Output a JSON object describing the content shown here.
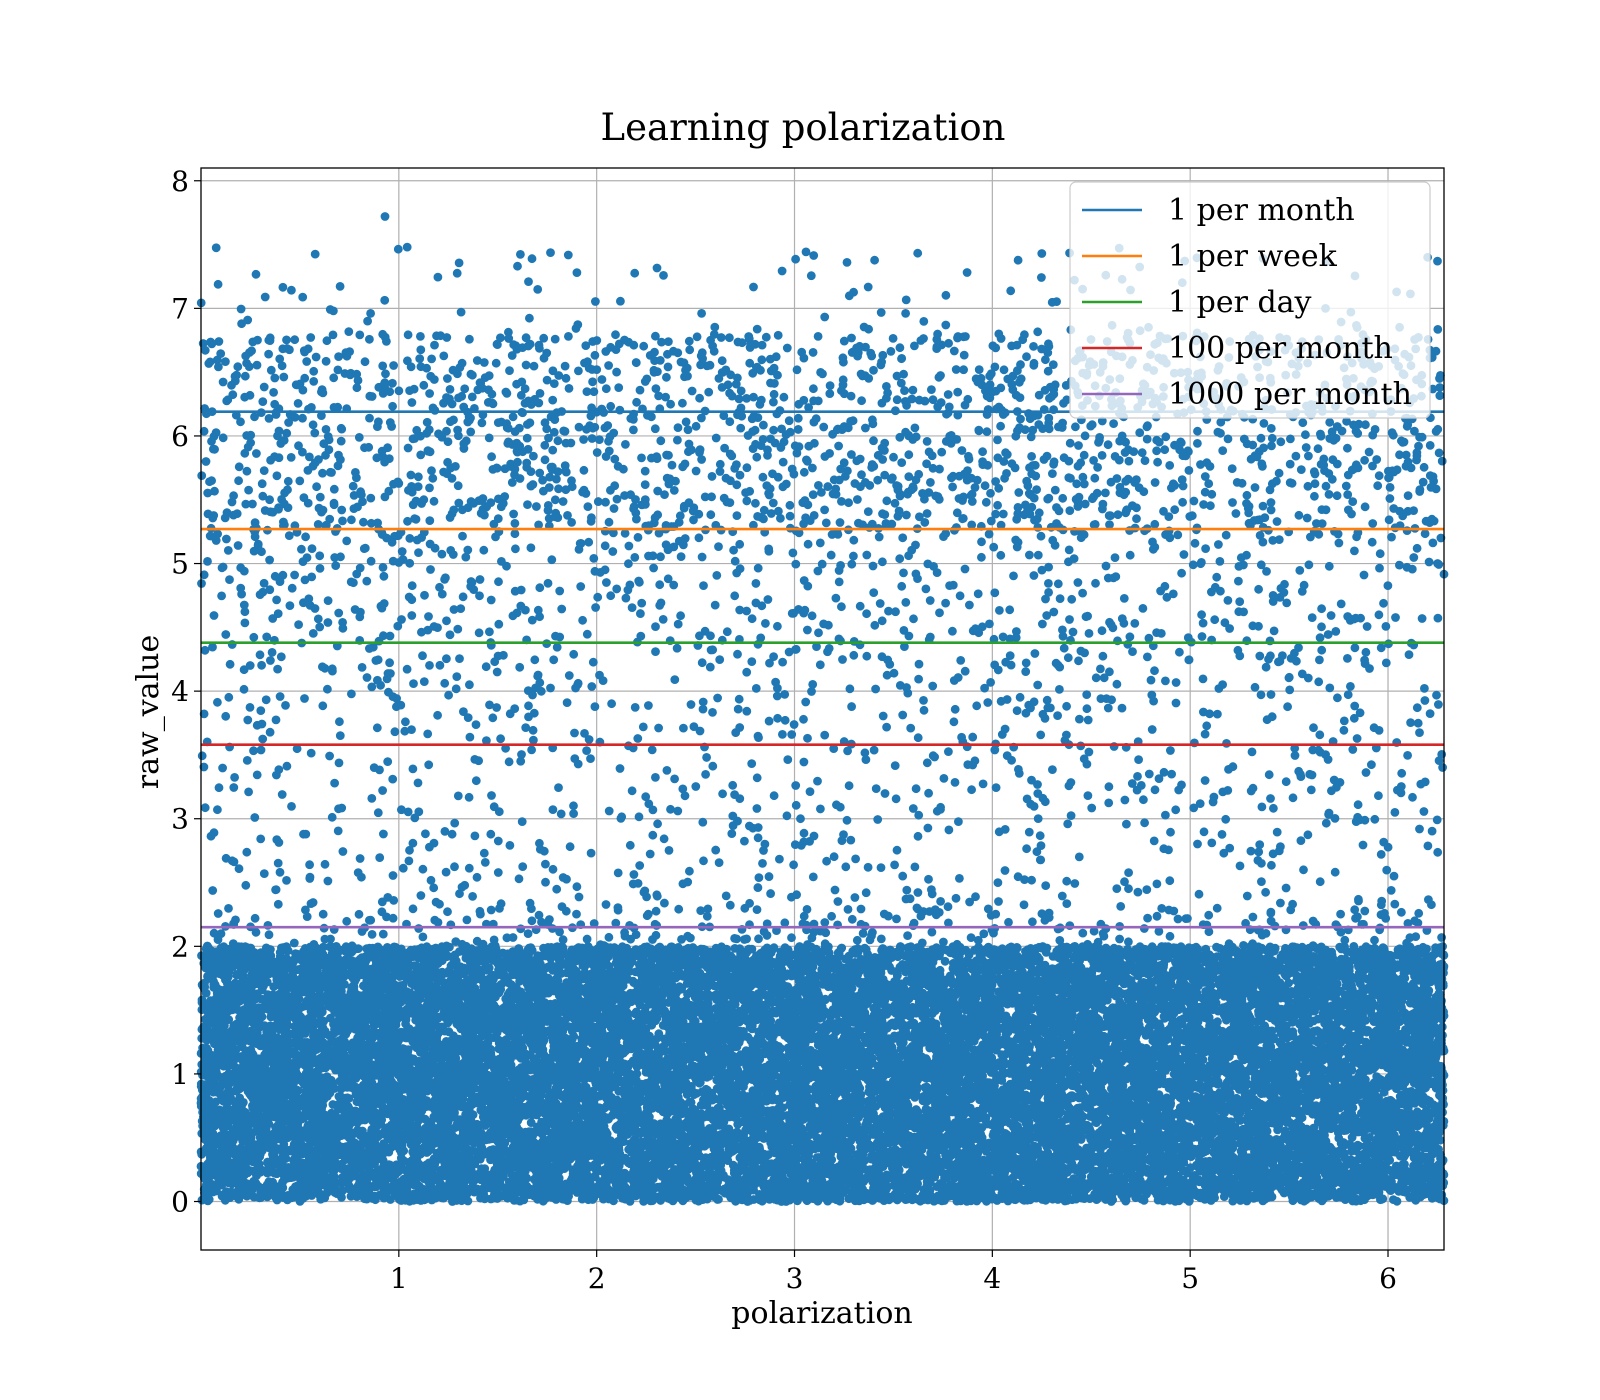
{
  "chart_data": {
    "type": "scatter",
    "title": "Learning polarization",
    "xlabel": "polarization",
    "ylabel": "raw_value",
    "xlim": [
      0.0,
      6.283
    ],
    "ylim": [
      -0.38,
      8.1
    ],
    "xticks": [
      1,
      2,
      3,
      4,
      5,
      6
    ],
    "yticks": [
      0,
      1,
      2,
      3,
      4,
      5,
      6,
      7,
      8
    ],
    "grid": true,
    "legend_position": "top-right",
    "scatter": {
      "color": "#1f77b4",
      "dense_band": {
        "y_range": [
          0.0,
          2.0
        ],
        "approx_points": 20000
      },
      "sparse_region": {
        "y_range": [
          2.0,
          7.5
        ],
        "approx_points": 3600
      },
      "notable_points": [
        [
          0.93,
          7.72
        ],
        [
          1.6,
          7.33
        ],
        [
          1.9,
          7.28
        ],
        [
          4.25,
          7.43
        ],
        [
          6.2,
          7.4
        ],
        [
          6.25,
          7.37
        ]
      ]
    },
    "series": [
      {
        "name": "1 per month",
        "y": 6.19,
        "color": "#1f77b4"
      },
      {
        "name": "1 per week",
        "y": 5.27,
        "color": "#ff7f0e"
      },
      {
        "name": "1 per day",
        "y": 4.38,
        "color": "#2ca02c"
      },
      {
        "name": "100 per month",
        "y": 3.58,
        "color": "#d62728"
      },
      {
        "name": "1000 per month",
        "y": 2.15,
        "color": "#9467bd"
      }
    ]
  }
}
